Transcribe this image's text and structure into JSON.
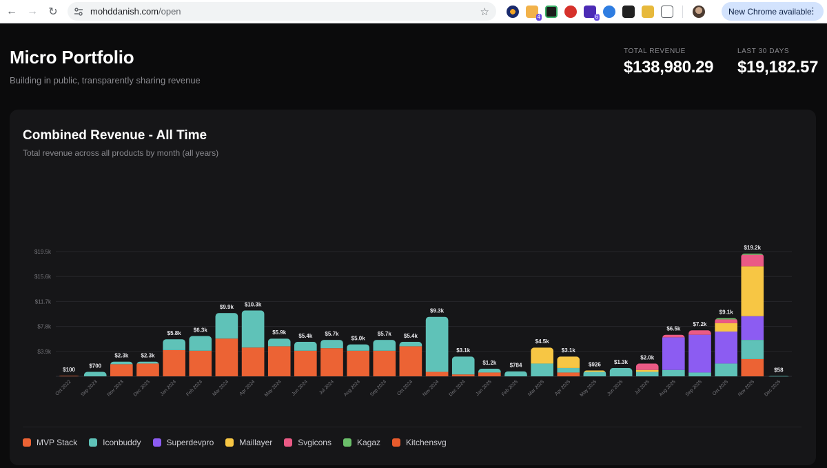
{
  "browser": {
    "url_host": "mohddanish.com",
    "url_path": "/open",
    "update_label": "New Chrome available",
    "ext_badges": [
      "4",
      "6"
    ]
  },
  "header": {
    "title": "Micro Portfolio",
    "subtitle": "Building in public, transparently sharing revenue"
  },
  "stats": {
    "total_label": "TOTAL REVENUE",
    "total_value": "$138,980.29",
    "last30_label": "LAST 30 DAYS",
    "last30_value": "$19,182.57"
  },
  "card": {
    "title": "Combined Revenue - All Time",
    "subtitle": "Total revenue across all products by month (all years)"
  },
  "colors": {
    "MVP Stack": "#ec6334",
    "Iconbuddy": "#5fc2b8",
    "Superdevpro": "#8c5cf2",
    "Maillayer": "#f7c644",
    "Svgicons": "#ea5a85",
    "Kagaz": "#6bbf6a",
    "Kitchensvg": "#e85b2c"
  },
  "chart_data": {
    "type": "bar",
    "stacked": true,
    "title": "Combined Revenue - All Time",
    "ylim": [
      0,
      19500
    ],
    "yticks": [
      3900,
      7800,
      11700,
      15600,
      19500
    ],
    "ytick_labels": [
      "$3.9k",
      "$7.8k",
      "$11.7k",
      "$15.6k",
      "$19.5k"
    ],
    "categories": [
      "Oct 2022",
      "Sep 2023",
      "Nov 2023",
      "Dec 2023",
      "Jan 2024",
      "Feb 2024",
      "Mar 2024",
      "Apr 2024",
      "May 2024",
      "Jun 2024",
      "Jul 2024",
      "Aug 2024",
      "Sep 2024",
      "Oct 2024",
      "Nov 2024",
      "Dec 2024",
      "Jan 2025",
      "Feb 2025",
      "Mar 2025",
      "Apr 2025",
      "May 2025",
      "Jun 2025",
      "Jul 2025",
      "Aug 2025",
      "Sep 2025",
      "Oct 2025",
      "Nov 2025",
      "Dec 2025"
    ],
    "total_labels": [
      "$100",
      "$700",
      "$2.3k",
      "$2.3k",
      "$5.8k",
      "$6.3k",
      "$9.9k",
      "$10.3k",
      "$5.9k",
      "$5.4k",
      "$5.7k",
      "$5.0k",
      "$5.7k",
      "$5.4k",
      "$9.3k",
      "$3.1k",
      "$1.2k",
      "$784",
      "$4.5k",
      "$3.1k",
      "$926",
      "$1.3k",
      "$2.0k",
      "$6.5k",
      "$7.2k",
      "$9.1k",
      "$19.2k",
      "$58"
    ],
    "series": [
      {
        "name": "MVP Stack",
        "values": [
          100,
          0,
          1900,
          2000,
          4100,
          4000,
          5900,
          4500,
          4700,
          4000,
          4400,
          4000,
          4000,
          4700,
          700,
          300,
          600,
          0,
          0,
          600,
          0,
          0,
          0,
          0,
          0,
          0,
          2700,
          0
        ]
      },
      {
        "name": "Iconbuddy",
        "values": [
          0,
          700,
          400,
          300,
          1700,
          2300,
          4000,
          5800,
          1200,
          1400,
          1300,
          1000,
          1700,
          700,
          8600,
          2800,
          600,
          784,
          2000,
          700,
          700,
          1300,
          700,
          1000,
          600,
          2000,
          3000,
          58
        ]
      },
      {
        "name": "Superdevpro",
        "values": [
          0,
          0,
          0,
          0,
          0,
          0,
          0,
          0,
          0,
          0,
          0,
          0,
          0,
          0,
          0,
          0,
          0,
          0,
          0,
          0,
          0,
          0,
          0,
          5100,
          5900,
          5000,
          3700,
          0
        ]
      },
      {
        "name": "Maillayer",
        "values": [
          0,
          0,
          0,
          0,
          0,
          0,
          0,
          0,
          0,
          0,
          0,
          0,
          0,
          0,
          0,
          0,
          0,
          0,
          2500,
          1800,
          226,
          0,
          300,
          0,
          0,
          1300,
          7800,
          0
        ]
      },
      {
        "name": "Svgicons",
        "values": [
          0,
          0,
          0,
          0,
          0,
          0,
          0,
          0,
          0,
          0,
          0,
          0,
          0,
          0,
          0,
          0,
          0,
          0,
          0,
          0,
          0,
          0,
          1000,
          400,
          700,
          600,
          1800,
          0
        ]
      },
      {
        "name": "Kagaz",
        "values": [
          0,
          0,
          0,
          0,
          0,
          0,
          0,
          0,
          0,
          0,
          0,
          0,
          0,
          0,
          0,
          0,
          0,
          0,
          0,
          0,
          0,
          0,
          0,
          0,
          0,
          200,
          200,
          0
        ]
      },
      {
        "name": "Kitchensvg",
        "values": [
          0,
          0,
          0,
          0,
          0,
          0,
          0,
          0,
          0,
          0,
          0,
          0,
          0,
          0,
          0,
          0,
          0,
          0,
          0,
          0,
          0,
          0,
          0,
          0,
          0,
          0,
          0,
          0
        ]
      }
    ],
    "legend": [
      "MVP Stack",
      "Iconbuddy",
      "Superdevpro",
      "Maillayer",
      "Svgicons",
      "Kagaz",
      "Kitchensvg"
    ],
    "legend_position": "bottom-left"
  }
}
